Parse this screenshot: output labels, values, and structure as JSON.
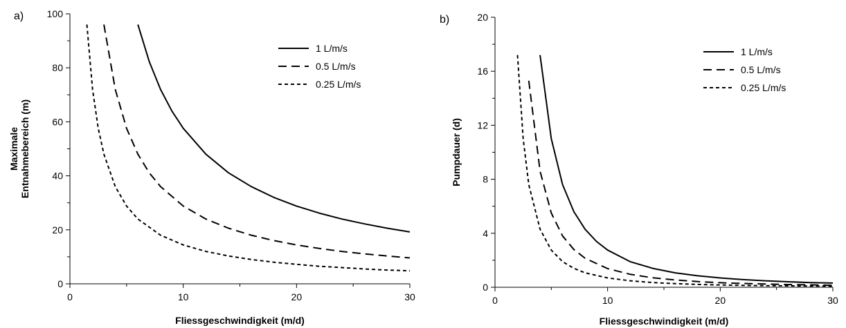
{
  "chart_data": [
    {
      "panel_label": "a)",
      "type": "line",
      "xlabel": "Fliessgeschwindigkeit (m/d)",
      "ylabel_line1": "Maximale",
      "ylabel_line2": "Entnahmebereich (m)",
      "xlim": [
        0,
        30
      ],
      "ylim": [
        0,
        100
      ],
      "xticks": [
        "0",
        "10",
        "20",
        "30"
      ],
      "yticks": [
        "0",
        "20",
        "40",
        "60",
        "80",
        "100"
      ],
      "legend_position": "top-right",
      "series": [
        {
          "name": "1 L/m/s",
          "style": "solid",
          "x": [
            6,
            7,
            8,
            9,
            10,
            12,
            14,
            16,
            18,
            20,
            22,
            24,
            26,
            28,
            30
          ],
          "y": [
            96,
            82.3,
            72,
            64,
            57.6,
            48,
            41.1,
            36,
            32,
            28.8,
            26.2,
            24,
            22.2,
            20.6,
            19.2
          ]
        },
        {
          "name": "0.5 L/m/s",
          "style": "dashed",
          "x": [
            3,
            4,
            5,
            6,
            7,
            8,
            10,
            12,
            14,
            16,
            18,
            20,
            22,
            24,
            26,
            28,
            30
          ],
          "y": [
            96,
            72,
            57.6,
            48,
            41.1,
            36,
            28.8,
            24,
            20.6,
            18,
            16,
            14.4,
            13.1,
            12,
            11.1,
            10.3,
            9.6
          ]
        },
        {
          "name": "0.25 L/m/s",
          "style": "dotted",
          "x": [
            1.5,
            2,
            2.5,
            3,
            4,
            5,
            6,
            8,
            10,
            12,
            14,
            16,
            18,
            20,
            22,
            24,
            26,
            28,
            30
          ],
          "y": [
            96,
            72,
            57.6,
            48,
            36,
            28.8,
            24,
            18,
            14.4,
            12,
            10.3,
            9,
            8,
            7.2,
            6.5,
            6,
            5.5,
            5.1,
            4.8
          ]
        }
      ]
    },
    {
      "panel_label": "b)",
      "type": "line",
      "xlabel": "Fliessgeschwindigkeit (m/d)",
      "ylabel": "Pumpdauer (d)",
      "xlim": [
        0,
        30
      ],
      "ylim": [
        0,
        20
      ],
      "xticks": [
        "0",
        "10",
        "20",
        "30"
      ],
      "yticks": [
        "0",
        "4",
        "8",
        "12",
        "16",
        "20"
      ],
      "legend_position": "top-right",
      "series": [
        {
          "name": "1 L/m/s",
          "style": "solid",
          "x": [
            4,
            5,
            6,
            7,
            8,
            9,
            10,
            12,
            14,
            16,
            18,
            20,
            22,
            24,
            26,
            28,
            30
          ],
          "y": [
            17.2,
            11,
            7.6,
            5.6,
            4.3,
            3.4,
            2.75,
            1.9,
            1.4,
            1.07,
            0.85,
            0.69,
            0.57,
            0.48,
            0.41,
            0.35,
            0.31
          ]
        },
        {
          "name": "0.5 L/m/s",
          "style": "dashed",
          "x": [
            3,
            4,
            5,
            6,
            7,
            8,
            10,
            12,
            14,
            16,
            18,
            20,
            22,
            24,
            26,
            28,
            30
          ],
          "y": [
            15.3,
            8.6,
            5.5,
            3.8,
            2.8,
            2.15,
            1.38,
            0.96,
            0.7,
            0.54,
            0.42,
            0.34,
            0.28,
            0.24,
            0.2,
            0.18,
            0.15
          ]
        },
        {
          "name": "0.25 L/m/s",
          "style": "dotted",
          "x": [
            2,
            2.5,
            3,
            4,
            5,
            6,
            7,
            8,
            10,
            12,
            14,
            16,
            18,
            20,
            22,
            24,
            26,
            28,
            30
          ],
          "y": [
            17.2,
            11,
            7.6,
            4.3,
            2.75,
            1.9,
            1.4,
            1.07,
            0.69,
            0.48,
            0.35,
            0.27,
            0.21,
            0.17,
            0.14,
            0.12,
            0.1,
            0.09,
            0.08
          ]
        }
      ]
    }
  ]
}
